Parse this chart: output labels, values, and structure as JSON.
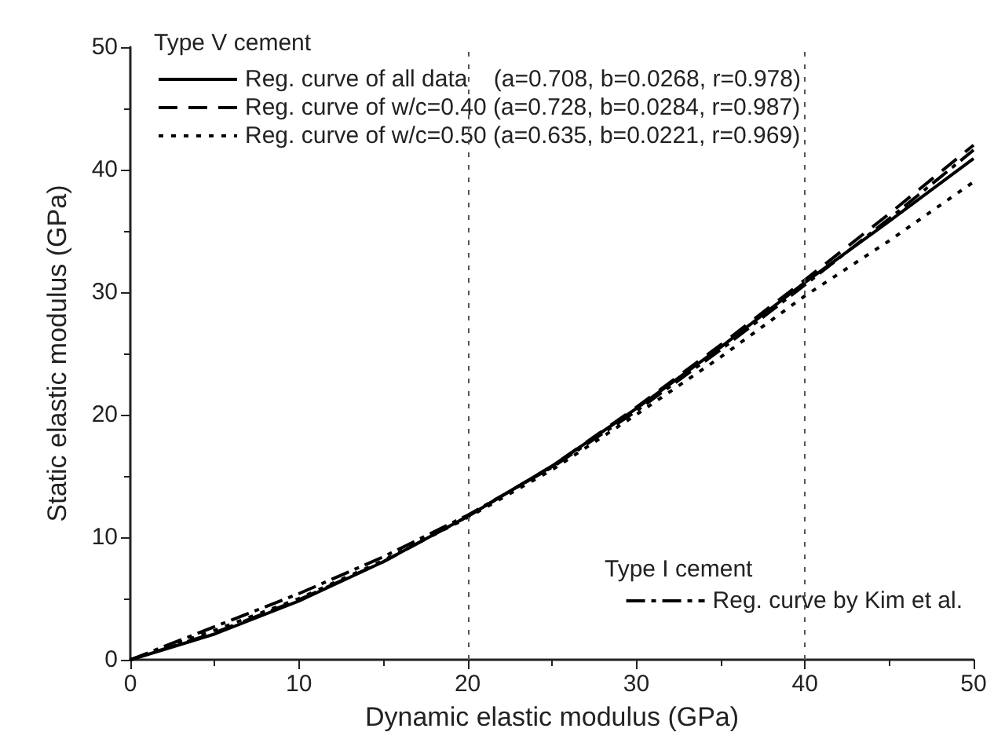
{
  "chart_data": {
    "type": "line",
    "xlabel": "Dynamic elastic modulus (GPa)",
    "ylabel": "Static elastic modulus (GPa)",
    "legend_title": "Type V cement",
    "annotations": [
      "Type I cement"
    ],
    "x": [
      0,
      5,
      10,
      15,
      20,
      25,
      30,
      35,
      40,
      45,
      50
    ],
    "series": [
      {
        "name": "Reg. curve of all data    (a=0.708, b=0.0268, r=0.978)",
        "color": "#000000",
        "line_style": "solid",
        "values": [
          0,
          2.1,
          4.8,
          8.0,
          11.7,
          15.8,
          20.5,
          25.5,
          30.8,
          35.8,
          40.9
        ]
      },
      {
        "name": "Reg. curve of w/c=0.40 (a=0.728, b=0.0284, r=0.987)",
        "color": "#000000",
        "line_style": "dashed",
        "values": [
          0,
          2.2,
          4.9,
          8.0,
          11.7,
          15.8,
          20.6,
          25.7,
          31.0,
          36.4,
          42.0
        ]
      },
      {
        "name": "Reg. curve of w/c=0.50 (a=0.635, b=0.0221, r=0.969)",
        "color": "#000000",
        "line_style": "dotted",
        "values": [
          0,
          2.4,
          5.0,
          8.1,
          11.6,
          15.5,
          20.0,
          24.7,
          29.7,
          34.2,
          39.0
        ]
      },
      {
        "name": "Reg. curve by Kim et al.",
        "color": "#000000",
        "line_style": "dashdot",
        "values": [
          0,
          2.7,
          5.4,
          8.4,
          11.8,
          15.7,
          20.3,
          25.3,
          30.6,
          36.0,
          41.6
        ]
      }
    ],
    "xlim": [
      0,
      50
    ],
    "ylim": [
      0,
      50
    ],
    "xticks": [
      0,
      10,
      20,
      30,
      40,
      50
    ],
    "yticks": [
      0,
      10,
      20,
      30,
      40,
      50
    ],
    "ref_lines": [
      {
        "axis": "x",
        "value": 20,
        "color": "#555555",
        "line_style": "dotted"
      },
      {
        "axis": "x",
        "value": 40,
        "color": "#555555",
        "line_style": "dotted"
      }
    ],
    "grid": false,
    "legend": "top left",
    "marker": "none"
  }
}
